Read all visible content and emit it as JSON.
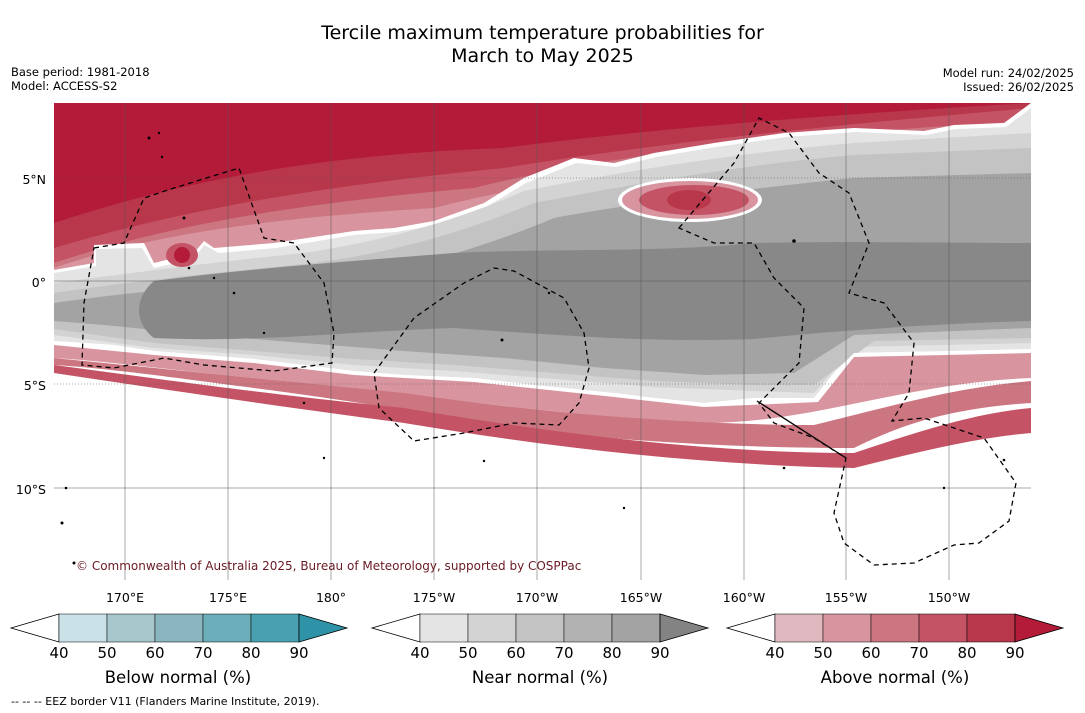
{
  "header": {
    "title_line1": "Tercile maximum temperature probabilities for",
    "title_line2": "March to May 2025",
    "base_period": "Base period: 1981-2018",
    "model": "Model: ACCESS-S2",
    "model_run": "Model run: 24/02/2025",
    "issued": "Issued: 26/02/2025"
  },
  "map": {
    "latitude_labels": [
      "5°N",
      "0°",
      "5°S",
      "10°S"
    ],
    "longitude_labels": [
      "170°E",
      "175°E",
      "180°",
      "175°W",
      "170°W",
      "165°W",
      "160°W",
      "155°W",
      "150°W"
    ],
    "copyright": "© Commonwealth of Australia 2025, Bureau of Meteorology, supported by COSPPac",
    "colors": {
      "above_normal_base": "#b31b39",
      "near_normal_base": "#888888",
      "ocean_boundary": "#ffffff"
    }
  },
  "colorbars": [
    {
      "name": "Below normal (%)",
      "ticks": [
        "40",
        "50",
        "60",
        "70",
        "80",
        "90"
      ],
      "colors": [
        "#c9e1e7",
        "#a7c7cc",
        "#8bb6c0",
        "#6caeba",
        "#48a0b0",
        "#2f93a8"
      ]
    },
    {
      "name": "Near normal (%)",
      "ticks": [
        "40",
        "50",
        "60",
        "70",
        "80",
        "90"
      ],
      "colors": [
        "#e4e4e4",
        "#d3d3d3",
        "#c3c3c3",
        "#b2b2b2",
        "#a3a3a3",
        "#838383"
      ]
    },
    {
      "name": "Above normal (%)",
      "ticks": [
        "40",
        "50",
        "60",
        "70",
        "80",
        "90"
      ],
      "colors": [
        "#e0b8bf",
        "#d8959f",
        "#cb7680",
        "#c45465",
        "#b8374a",
        "#b31b39"
      ]
    }
  ],
  "footnote": "--  --  -- EEZ border V11 (Flanders Marine Institute, 2019)."
}
